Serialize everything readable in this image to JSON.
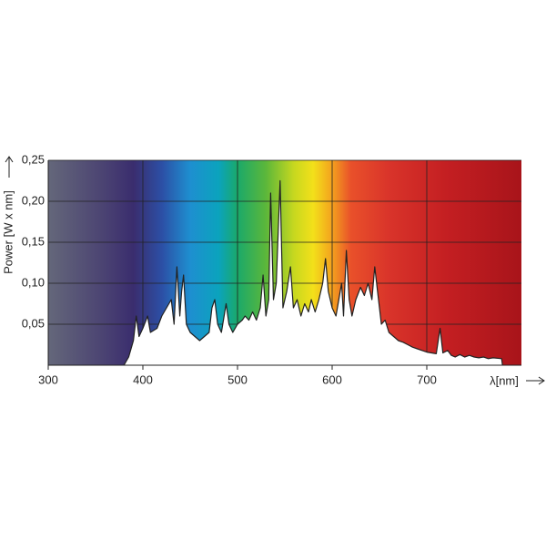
{
  "chart_data": {
    "type": "line",
    "ylabel": "Power [W x nm]",
    "xlabel": "λ[nm]",
    "color": "#222222",
    "xlim": [
      300,
      800
    ],
    "xticks": [
      300,
      400,
      500,
      600,
      700
    ],
    "ylim": [
      0,
      0.25
    ],
    "yticks": [
      {
        "value": 0.05,
        "label": "0,05"
      },
      {
        "value": 0.1,
        "label": "0,10"
      },
      {
        "value": 0.15,
        "label": "0,15"
      },
      {
        "value": 0.2,
        "label": "0,20"
      },
      {
        "value": 0.25,
        "label": "0,25"
      }
    ],
    "grid": true,
    "x": [
      380,
      385,
      390,
      393,
      396,
      400,
      405,
      408,
      415,
      420,
      425,
      430,
      433,
      436,
      439,
      441,
      443,
      446,
      450,
      455,
      460,
      465,
      470,
      473,
      476,
      479,
      483,
      488,
      491,
      495,
      500,
      505,
      508,
      512,
      516,
      520,
      524,
      527,
      530,
      533,
      535,
      538,
      541,
      545,
      548,
      552,
      556,
      559,
      563,
      567,
      571,
      575,
      578,
      582,
      586,
      590,
      593,
      596,
      600,
      604,
      607,
      610,
      612,
      615,
      618,
      621,
      625,
      630,
      634,
      638,
      642,
      645,
      648,
      652,
      656,
      660,
      665,
      670,
      675,
      680,
      685,
      690,
      695,
      700,
      705,
      710,
      714,
      717,
      722,
      726,
      730,
      735,
      740,
      745,
      750,
      755,
      760,
      765,
      770,
      779,
      780
    ],
    "values": [
      0,
      0.01,
      0.03,
      0.06,
      0.035,
      0.045,
      0.06,
      0.04,
      0.045,
      0.06,
      0.07,
      0.08,
      0.05,
      0.12,
      0.06,
      0.09,
      0.11,
      0.05,
      0.04,
      0.035,
      0.03,
      0.035,
      0.04,
      0.07,
      0.08,
      0.05,
      0.04,
      0.075,
      0.05,
      0.04,
      0.05,
      0.055,
      0.06,
      0.055,
      0.065,
      0.055,
      0.07,
      0.11,
      0.06,
      0.08,
      0.21,
      0.08,
      0.1,
      0.225,
      0.07,
      0.09,
      0.12,
      0.07,
      0.08,
      0.06,
      0.075,
      0.065,
      0.08,
      0.065,
      0.08,
      0.1,
      0.13,
      0.09,
      0.07,
      0.06,
      0.08,
      0.1,
      0.06,
      0.14,
      0.08,
      0.06,
      0.08,
      0.095,
      0.085,
      0.1,
      0.08,
      0.12,
      0.09,
      0.05,
      0.055,
      0.04,
      0.035,
      0.03,
      0.028,
      0.025,
      0.022,
      0.02,
      0.018,
      0.016,
      0.015,
      0.014,
      0.045,
      0.015,
      0.018,
      0.012,
      0.01,
      0.013,
      0.01,
      0.012,
      0.01,
      0.009,
      0.01,
      0.008,
      0.009,
      0.008,
      0
    ]
  }
}
